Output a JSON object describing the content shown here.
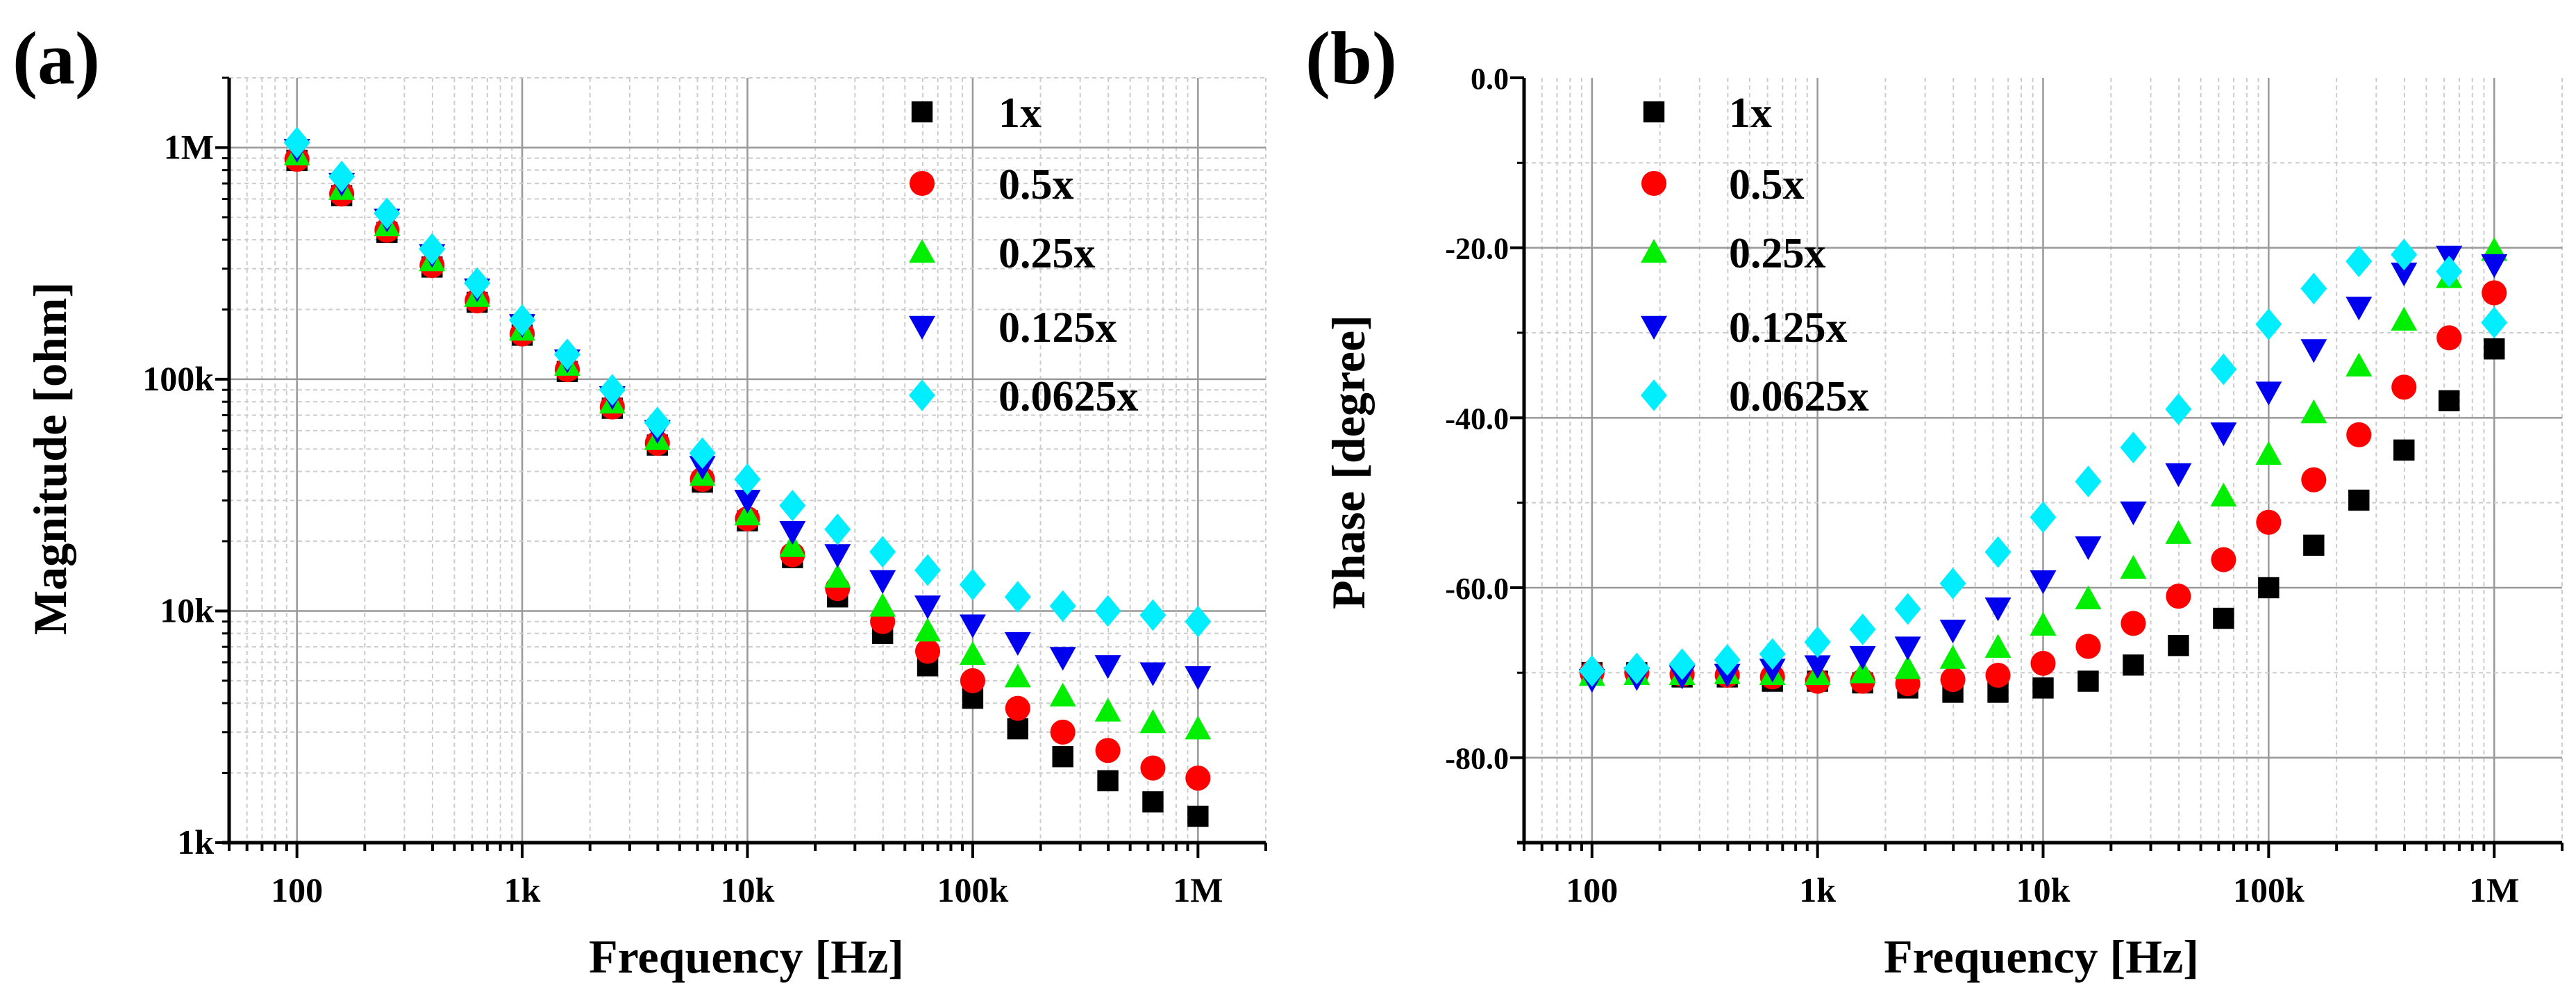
{
  "chart_data": [
    {
      "panel_label": "(a)",
      "type": "scatter",
      "xscale": "log",
      "yscale": "log",
      "xlabel": "Frequency [Hz]",
      "ylabel": "Magnitude [ohm]",
      "xlim": [
        50,
        2000000
      ],
      "ylim": [
        1000,
        2000000
      ],
      "xticks": [
        {
          "v": 100,
          "label": "100"
        },
        {
          "v": 1000,
          "label": "1k"
        },
        {
          "v": 10000,
          "label": "10k"
        },
        {
          "v": 100000,
          "label": "100k"
        },
        {
          "v": 1000000,
          "label": "1M"
        }
      ],
      "yticks": [
        {
          "v": 1000,
          "label": "1k"
        },
        {
          "v": 10000,
          "label": "10k"
        },
        {
          "v": 100000,
          "label": "100k"
        },
        {
          "v": 1000000,
          "label": "1M"
        }
      ],
      "grid": true,
      "legend_position": "top-right",
      "x": [
        100,
        158,
        251,
        398,
        631,
        1000,
        1585,
        2512,
        3981,
        6310,
        10000,
        15849,
        25119,
        39811,
        63096,
        100000,
        158489,
        251189,
        398107,
        630957,
        1000000
      ],
      "series": [
        {
          "name": "1x",
          "marker": "square",
          "color": "#000000",
          "values": [
            880000,
            620000,
            430000,
            305000,
            215000,
            155000,
            108000,
            75000,
            52000,
            36000,
            24500,
            17000,
            11500,
            8000,
            5800,
            4200,
            3100,
            2350,
            1850,
            1500,
            1300
          ]
        },
        {
          "name": "0.5x",
          "marker": "circle",
          "color": "#ff0000",
          "values": [
            890000,
            630000,
            440000,
            310000,
            218000,
            157000,
            110000,
            76000,
            53000,
            37000,
            25000,
            17500,
            12500,
            9000,
            6700,
            5000,
            3800,
            3000,
            2500,
            2100,
            1900
          ]
        },
        {
          "name": "0.25x",
          "marker": "triangle-up",
          "color": "#00ee00",
          "values": [
            930000,
            660000,
            460000,
            325000,
            228000,
            163000,
            115000,
            79000,
            55000,
            38500,
            26000,
            19000,
            14000,
            10500,
            8200,
            6500,
            5200,
            4300,
            3700,
            3300,
            3100
          ]
        },
        {
          "name": "0.125x",
          "marker": "triangle-down",
          "color": "#0000ee",
          "values": [
            980000,
            700000,
            490000,
            345000,
            245000,
            172000,
            121000,
            84000,
            60000,
            42000,
            30000,
            22000,
            17500,
            13500,
            10500,
            8700,
            7300,
            6300,
            5800,
            5400,
            5200
          ]
        },
        {
          "name": "0.0625x",
          "marker": "diamond",
          "color": "#00eeff",
          "values": [
            1050000,
            750000,
            520000,
            365000,
            260000,
            180000,
            128000,
            90000,
            65000,
            48000,
            37000,
            28500,
            22500,
            18000,
            15000,
            13000,
            11500,
            10500,
            10000,
            9600,
            9000
          ]
        }
      ]
    },
    {
      "panel_label": "(b)",
      "type": "scatter",
      "xscale": "log",
      "yscale": "linear",
      "xlabel": "Frequency [Hz]",
      "ylabel": "Phase [degree]",
      "xlim": [
        50,
        2000000
      ],
      "ylim": [
        -90,
        0
      ],
      "xticks": [
        {
          "v": 100,
          "label": "100"
        },
        {
          "v": 1000,
          "label": "1k"
        },
        {
          "v": 10000,
          "label": "10k"
        },
        {
          "v": 100000,
          "label": "100k"
        },
        {
          "v": 1000000,
          "label": "1M"
        }
      ],
      "yticks": [
        {
          "v": 0,
          "label": "0.0"
        },
        {
          "v": -20,
          "label": "-20.0"
        },
        {
          "v": -40,
          "label": "-40.0"
        },
        {
          "v": -60,
          "label": "-60.0"
        },
        {
          "v": -80,
          "label": "-80.0"
        }
      ],
      "grid": true,
      "legend_position": "top-left",
      "x": [
        100,
        158,
        251,
        398,
        631,
        1000,
        1585,
        2512,
        3981,
        6310,
        10000,
        15849,
        25119,
        39811,
        63096,
        100000,
        158489,
        251189,
        398107,
        630957,
        1000000
      ],
      "series": [
        {
          "name": "1x",
          "marker": "square",
          "color": "#000000",
          "values": [
            -70,
            -70,
            -70.5,
            -70.5,
            -71,
            -71,
            -71.2,
            -71.8,
            -72.3,
            -72.3,
            -71.8,
            -71,
            -69.1,
            -66.8,
            -63.6,
            -60,
            -55,
            -49.7,
            -43.8,
            -38,
            -31.9
          ]
        },
        {
          "name": "0.5x",
          "marker": "circle",
          "color": "#ff0000",
          "values": [
            -70,
            -70,
            -70.2,
            -70.3,
            -70.5,
            -71,
            -71,
            -71.3,
            -70.8,
            -70.3,
            -68.9,
            -66.9,
            -64.2,
            -61,
            -56.7,
            -52.3,
            -47.3,
            -42,
            -36.4,
            -30.6,
            -25.3
          ]
        },
        {
          "name": "0.25x",
          "marker": "triangle-up",
          "color": "#00ee00",
          "values": [
            -70.3,
            -70.2,
            -70.2,
            -70.1,
            -70.2,
            -70.2,
            -70,
            -69.5,
            -68.3,
            -67,
            -64.4,
            -61.3,
            -57.7,
            -53.6,
            -49.2,
            -44.3,
            -39.4,
            -33.9,
            -28.5,
            -23.5,
            -20.3
          ]
        },
        {
          "name": "0.125x",
          "marker": "triangle-down",
          "color": "#0000ee",
          "values": [
            -70.8,
            -70.6,
            -70.4,
            -70.2,
            -69.6,
            -69.2,
            -68.1,
            -67,
            -65,
            -62.4,
            -59.2,
            -55.2,
            -51.1,
            -46.6,
            -41.8,
            -37,
            -32,
            -27,
            -23,
            -21,
            -22
          ]
        },
        {
          "name": "0.0625x",
          "marker": "diamond",
          "color": "#00eeff",
          "values": [
            -69.8,
            -69.5,
            -69,
            -68.5,
            -67.8,
            -66.4,
            -64.9,
            -62.5,
            -59.5,
            -55.8,
            -51.7,
            -47.5,
            -43.5,
            -39,
            -34.3,
            -29,
            -24.8,
            -21.6,
            -20.8,
            -22.8,
            -28.8
          ]
        }
      ]
    }
  ]
}
